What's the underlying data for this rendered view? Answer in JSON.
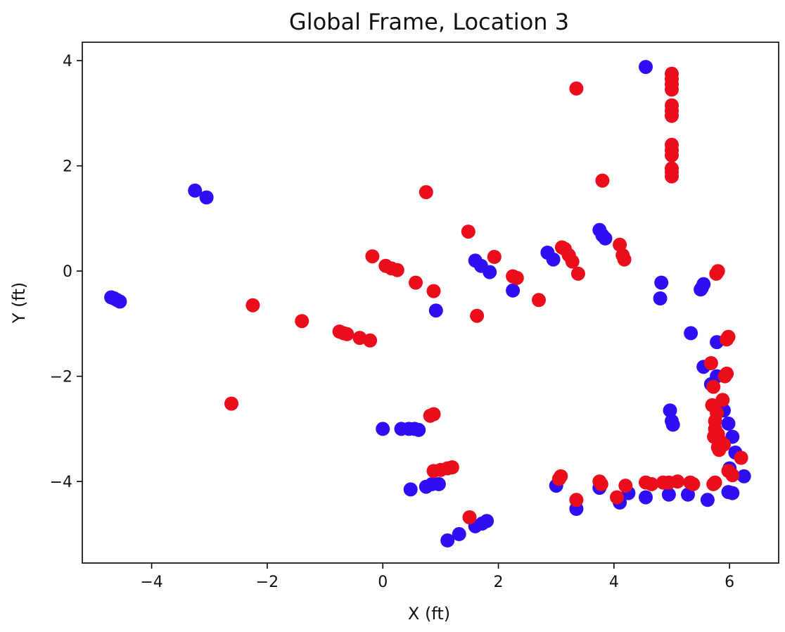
{
  "chart_data": {
    "type": "scatter",
    "title": "Global Frame, Location 3",
    "xlabel": "X (ft)",
    "ylabel": "Y (ft)",
    "xlim": [
      -5.2,
      6.85
    ],
    "ylim": [
      -5.55,
      4.35
    ],
    "xticks": [
      -4,
      -2,
      0,
      2,
      4,
      6
    ],
    "xtick_labels": [
      "−4",
      "−2",
      "0",
      "2",
      "4",
      "6"
    ],
    "yticks": [
      4,
      2,
      0,
      -2,
      -4
    ],
    "ytick_labels": [
      "4",
      "2",
      "0",
      "−2",
      "−4"
    ],
    "grid": false,
    "series": [
      {
        "color": "#2e0ff5",
        "points": [
          [
            -4.7,
            -0.5
          ],
          [
            -4.65,
            -0.52
          ],
          [
            -4.6,
            -0.55
          ],
          [
            -4.55,
            -0.58
          ],
          [
            -3.25,
            1.53
          ],
          [
            -3.05,
            1.4
          ],
          [
            4.55,
            3.88
          ],
          [
            1.6,
            0.2
          ],
          [
            1.7,
            0.1
          ],
          [
            1.85,
            -0.02
          ],
          [
            2.25,
            -0.37
          ],
          [
            0.92,
            -0.75
          ],
          [
            2.85,
            0.35
          ],
          [
            2.95,
            0.22
          ],
          [
            3.75,
            0.78
          ],
          [
            3.8,
            0.68
          ],
          [
            3.85,
            0.62
          ],
          [
            4.82,
            -0.22
          ],
          [
            4.8,
            -0.52
          ],
          [
            5.55,
            -0.25
          ],
          [
            5.52,
            -0.32
          ],
          [
            5.5,
            -0.35
          ],
          [
            5.33,
            -1.18
          ],
          [
            5.78,
            -1.35
          ],
          [
            5.55,
            -1.82
          ],
          [
            5.68,
            -2.15
          ],
          [
            5.78,
            -2.0
          ],
          [
            5.9,
            -2.65
          ],
          [
            5.98,
            -2.9
          ],
          [
            6.05,
            -3.15
          ],
          [
            6.1,
            -3.45
          ],
          [
            6.25,
            -3.9
          ],
          [
            6.0,
            -3.75
          ],
          [
            4.97,
            -2.65
          ],
          [
            5.0,
            -2.85
          ],
          [
            5.02,
            -2.92
          ],
          [
            0.0,
            -3.0
          ],
          [
            0.32,
            -3.0
          ],
          [
            0.45,
            -3.0
          ],
          [
            0.55,
            -3.0
          ],
          [
            0.62,
            -3.02
          ],
          [
            0.48,
            -4.15
          ],
          [
            0.75,
            -4.1
          ],
          [
            0.85,
            -4.05
          ],
          [
            0.97,
            -4.05
          ],
          [
            1.12,
            -5.12
          ],
          [
            1.32,
            -5.0
          ],
          [
            1.6,
            -4.85
          ],
          [
            1.72,
            -4.8
          ],
          [
            1.8,
            -4.75
          ],
          [
            3.0,
            -4.08
          ],
          [
            3.35,
            -4.52
          ],
          [
            3.75,
            -4.12
          ],
          [
            4.1,
            -4.4
          ],
          [
            4.25,
            -4.22
          ],
          [
            4.55,
            -4.3
          ],
          [
            4.95,
            -4.25
          ],
          [
            5.28,
            -4.25
          ],
          [
            5.62,
            -4.35
          ],
          [
            5.98,
            -4.2
          ],
          [
            6.05,
            -4.22
          ]
        ]
      },
      {
        "color": "#eb0c1c",
        "points": [
          [
            5.0,
            3.75
          ],
          [
            5.0,
            3.65
          ],
          [
            5.0,
            3.55
          ],
          [
            5.0,
            3.45
          ],
          [
            5.0,
            3.15
          ],
          [
            5.0,
            3.05
          ],
          [
            5.0,
            2.95
          ],
          [
            5.0,
            2.4
          ],
          [
            5.0,
            2.3
          ],
          [
            5.0,
            2.2
          ],
          [
            5.0,
            1.95
          ],
          [
            5.0,
            1.88
          ],
          [
            5.0,
            1.8
          ],
          [
            3.35,
            3.47
          ],
          [
            3.8,
            1.72
          ],
          [
            0.75,
            1.5
          ],
          [
            1.48,
            0.75
          ],
          [
            -0.18,
            0.28
          ],
          [
            0.05,
            0.1
          ],
          [
            0.15,
            0.05
          ],
          [
            0.25,
            0.02
          ],
          [
            0.57,
            -0.22
          ],
          [
            0.88,
            -0.38
          ],
          [
            1.93,
            0.27
          ],
          [
            2.25,
            -0.1
          ],
          [
            2.32,
            -0.13
          ],
          [
            2.7,
            -0.55
          ],
          [
            1.63,
            -0.85
          ],
          [
            3.1,
            0.45
          ],
          [
            3.15,
            0.42
          ],
          [
            3.22,
            0.3
          ],
          [
            3.28,
            0.18
          ],
          [
            3.38,
            -0.05
          ],
          [
            4.1,
            0.5
          ],
          [
            4.15,
            0.3
          ],
          [
            4.18,
            0.22
          ],
          [
            5.8,
            0.0
          ],
          [
            5.77,
            -0.05
          ],
          [
            -2.25,
            -0.65
          ],
          [
            -1.4,
            -0.95
          ],
          [
            -0.75,
            -1.15
          ],
          [
            -0.68,
            -1.18
          ],
          [
            -0.62,
            -1.2
          ],
          [
            -0.4,
            -1.27
          ],
          [
            -0.22,
            -1.32
          ],
          [
            -2.62,
            -2.52
          ],
          [
            0.82,
            -2.75
          ],
          [
            0.88,
            -2.72
          ],
          [
            0.88,
            -3.8
          ],
          [
            1.0,
            -3.78
          ],
          [
            1.12,
            -3.75
          ],
          [
            1.2,
            -3.73
          ],
          [
            1.5,
            -4.68
          ],
          [
            3.35,
            -4.35
          ],
          [
            3.08,
            -3.9
          ],
          [
            3.05,
            -3.95
          ],
          [
            3.75,
            -4.0
          ],
          [
            3.78,
            -4.05
          ],
          [
            4.05,
            -4.3
          ],
          [
            4.2,
            -4.08
          ],
          [
            4.55,
            -4.02
          ],
          [
            4.65,
            -4.05
          ],
          [
            4.85,
            -4.02
          ],
          [
            4.95,
            -4.02
          ],
          [
            5.1,
            -4.0
          ],
          [
            5.32,
            -4.02
          ],
          [
            5.37,
            -4.05
          ],
          [
            5.75,
            -4.02
          ],
          [
            5.72,
            -4.05
          ],
          [
            5.98,
            -1.25
          ],
          [
            5.95,
            -1.3
          ],
          [
            5.95,
            -1.95
          ],
          [
            5.92,
            -2.0
          ],
          [
            5.68,
            -1.75
          ],
          [
            5.72,
            -2.2
          ],
          [
            5.88,
            -2.45
          ],
          [
            5.7,
            -2.55
          ],
          [
            5.78,
            -2.7
          ],
          [
            5.75,
            -2.85
          ],
          [
            5.75,
            -3.0
          ],
          [
            5.8,
            -3.1
          ],
          [
            5.73,
            -3.15
          ],
          [
            5.85,
            -3.25
          ],
          [
            5.9,
            -3.3
          ],
          [
            5.82,
            -3.4
          ],
          [
            5.8,
            -3.35
          ],
          [
            6.2,
            -3.55
          ],
          [
            5.98,
            -3.8
          ],
          [
            6.05,
            -3.88
          ]
        ]
      }
    ]
  }
}
